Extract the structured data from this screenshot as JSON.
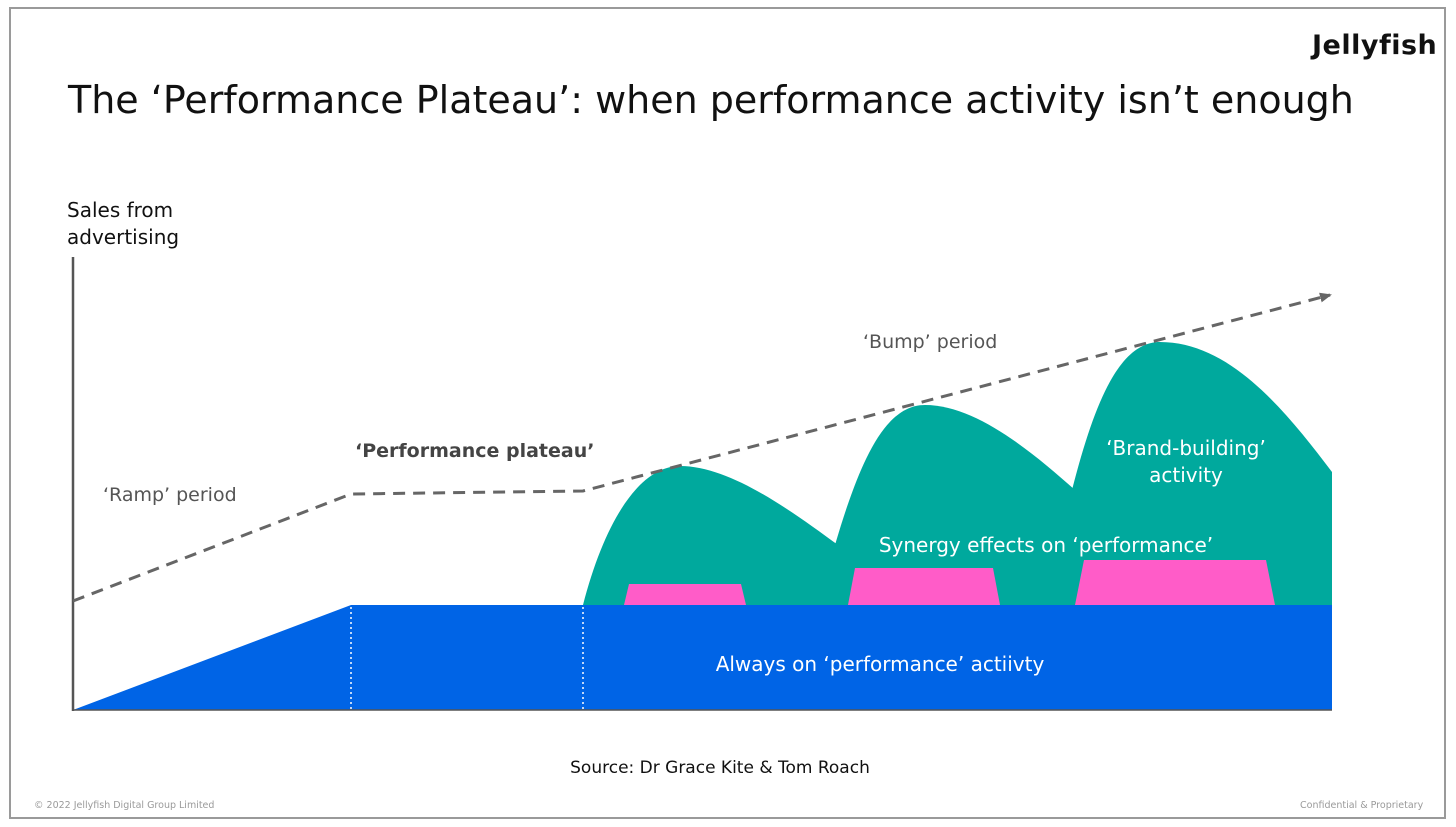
{
  "logo": "Jellyfish",
  "title": "The ‘Performance Plateau’: when performance activity isn’t enough",
  "y_axis_label_line1": "Sales from",
  "y_axis_label_line2": "advertising",
  "labels": {
    "ramp": "‘Ramp’ period",
    "plateau": "‘Performance plateau’",
    "bump": "‘Bump’ period",
    "brand_line1": "‘Brand-building’",
    "brand_line2": "activity",
    "synergy": "Synergy effects on ‘performance’",
    "always_on": "Always on ‘performance’ actiivty"
  },
  "source": "Source: Dr Grace Kite & Tom Roach",
  "footer": {
    "copyright": "© 2022 Jellyfish Digital Group Limited",
    "confidential": "Confidential & Proprietary"
  },
  "colors": {
    "always_on": "#0064e6",
    "brand": "#00a99d",
    "synergy": "#ff5cc8",
    "trend": "#666666",
    "axis": "#555555"
  }
}
